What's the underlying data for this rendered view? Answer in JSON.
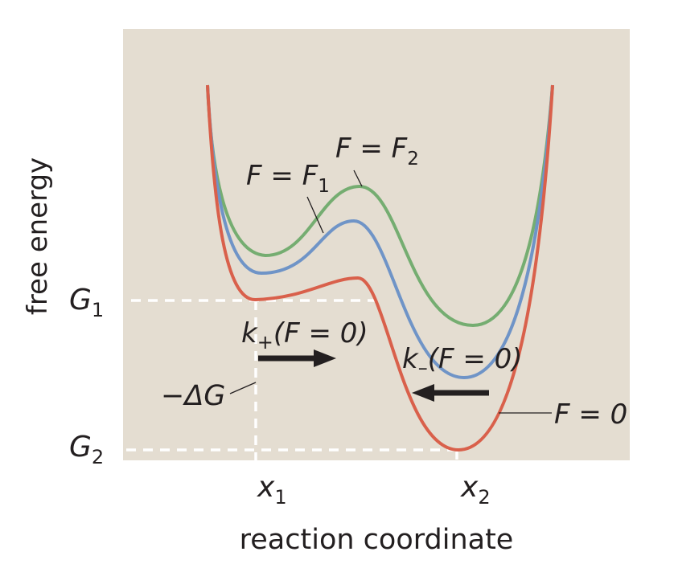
{
  "axes": {
    "ylabel": "free energy",
    "xlabel": "reaction coordinate"
  },
  "ticks": {
    "y": [
      {
        "base": "G",
        "sub": "1"
      },
      {
        "base": "G",
        "sub": "2"
      }
    ],
    "x": [
      {
        "base": "x",
        "sub": "1"
      },
      {
        "base": "x",
        "sub": "2"
      }
    ]
  },
  "curves": [
    {
      "label": "F = 0",
      "color": "#d9604b"
    },
    {
      "label_base": "F = F",
      "label_sub": "1",
      "color": "#6f94c7"
    },
    {
      "label_base": "F = F",
      "label_sub": "2",
      "color": "#75ad71"
    }
  ],
  "rates": {
    "forward": {
      "k": "k",
      "sub": "+",
      "arg": "(F = 0)"
    },
    "backward": {
      "k": "k",
      "sub": "–",
      "arg": "(F = 0)"
    }
  },
  "delta_label": "−ΔG",
  "colors": {
    "background": "#e4ddd1",
    "guide": "#ffffff",
    "arrow": "#231f20"
  }
}
